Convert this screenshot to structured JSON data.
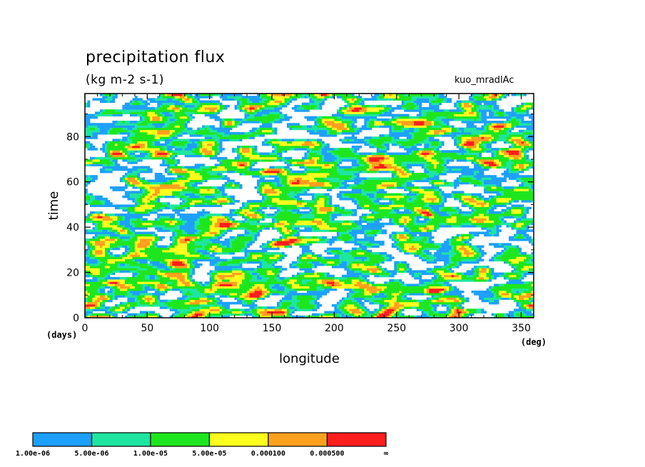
{
  "chart_data": {
    "type": "heatmap",
    "title": "precipitation flux",
    "units": "(kg m-2 s-1)",
    "experiment": "kuo_mradlAc",
    "xlabel": "longitude",
    "xunit": "(deg)",
    "ylabel": "time",
    "yunit": "(days)",
    "xlim": [
      0,
      360
    ],
    "ylim": [
      0,
      99
    ],
    "xticks": [
      0,
      50,
      100,
      150,
      200,
      250,
      300,
      350
    ],
    "yticks": [
      0,
      20,
      40,
      60,
      80
    ],
    "colorbar": {
      "levels": [
        "1.00e-06",
        "5.00e-06",
        "1.00e-05",
        "5.00e-05",
        "0.000100",
        "0.000500",
        "∞"
      ],
      "colors": [
        "#1ea0ff",
        "#1ee6a0",
        "#1ee61e",
        "#ffff1e",
        "#ffa01e",
        "#ff1e1e"
      ]
    },
    "grid": false
  }
}
